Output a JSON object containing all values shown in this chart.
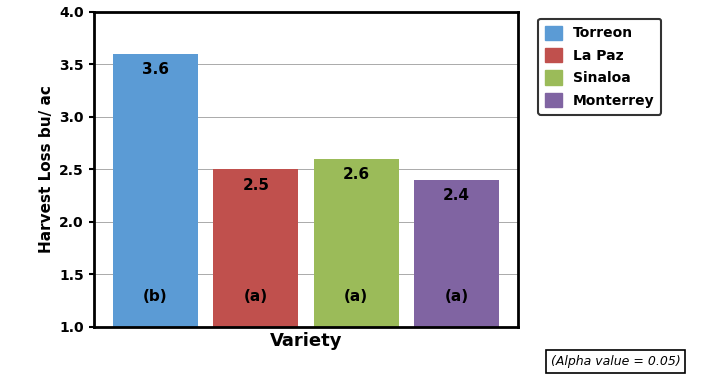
{
  "categories": [
    "Torreon",
    "La Paz",
    "Sinaloa",
    "Monterrey"
  ],
  "values": [
    3.6,
    2.5,
    2.6,
    2.4
  ],
  "bar_colors": [
    "#5B9BD5",
    "#C0504D",
    "#9BBB59",
    "#8064A2"
  ],
  "labels_top": [
    "3.6",
    "2.5",
    "2.6",
    "2.4"
  ],
  "labels_bottom": [
    "(b)",
    "(a)",
    "(a)",
    "(a)"
  ],
  "ylabel": "Harvest Loss bu/ ac",
  "xlabel": "Variety",
  "ylim": [
    1,
    4
  ],
  "yticks": [
    1,
    1.5,
    2,
    2.5,
    3,
    3.5,
    4
  ],
  "legend_labels": [
    "Torreon",
    "La Paz",
    "Sinaloa",
    "Monterrey"
  ],
  "legend_colors": [
    "#5B9BD5",
    "#C0504D",
    "#9BBB59",
    "#8064A2"
  ],
  "alpha_note": "(Alpha value = 0.05)",
  "background_color": "#FFFFFF"
}
